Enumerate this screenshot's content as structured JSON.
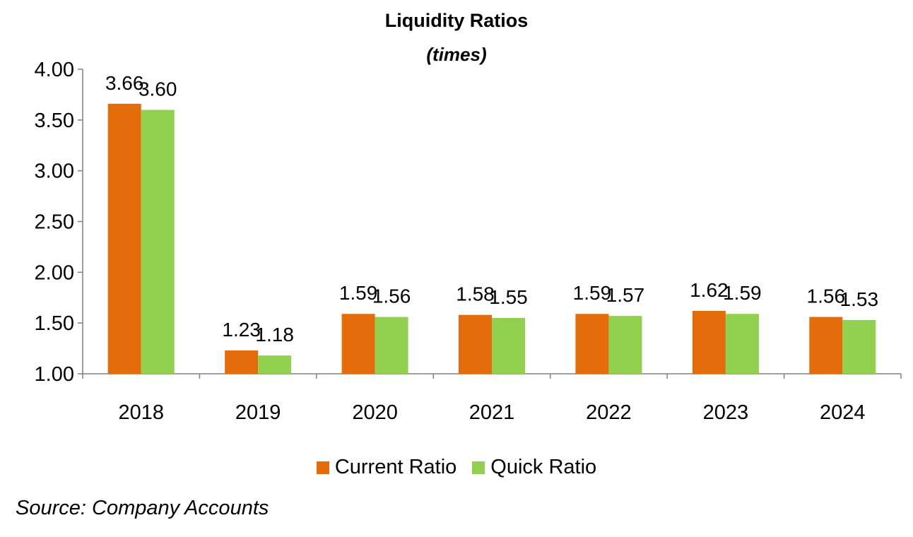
{
  "chart_data": {
    "type": "bar",
    "title": "Liquidity Ratios",
    "subtitle": "(times)",
    "categories": [
      "2018",
      "2019",
      "2020",
      "2021",
      "2022",
      "2023",
      "2024"
    ],
    "series": [
      {
        "name": "Current Ratio",
        "color": "#E46C0A",
        "values": [
          3.66,
          1.23,
          1.59,
          1.58,
          1.59,
          1.62,
          1.56
        ],
        "labels": [
          "3.66",
          "1.23",
          "1.59",
          "1.58",
          "1.59",
          "1.62",
          "1.56"
        ]
      },
      {
        "name": "Quick Ratio",
        "color": "#92D050",
        "values": [
          3.6,
          1.18,
          1.56,
          1.55,
          1.57,
          1.59,
          1.53
        ],
        "labels": [
          "3.60",
          "1.18",
          "1.56",
          "1.55",
          "1.57",
          "1.59",
          "1.53"
        ]
      }
    ],
    "ylim": [
      1.0,
      4.0
    ],
    "yticks": [
      "1.00",
      "1.50",
      "2.00",
      "2.50",
      "3.00",
      "3.50",
      "4.00"
    ],
    "grid": false,
    "legend_position": "bottom",
    "xlabel": "",
    "ylabel": ""
  },
  "source": "Source: Company Accounts"
}
